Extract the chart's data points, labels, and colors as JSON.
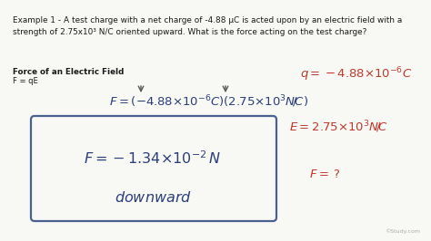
{
  "bg_color": "#f8f8f5",
  "title_text": "Example 1 - A test charge with a net charge of -4.88 μC is acted upon by an electric field with a\nstrength of 2.75x10³ N/C oriented upward. What is the force acting on the test charge?",
  "label_bold": "Force of an Electric Field",
  "label_formula": "F = qE",
  "watermark": "©Study.com",
  "title_color": "#1a1a1a",
  "handwriting_color_blue": "#2c3e7a",
  "handwriting_color_red": "#c0392b",
  "box_edge_color": "#4a6090",
  "arrow_color": "#555555"
}
